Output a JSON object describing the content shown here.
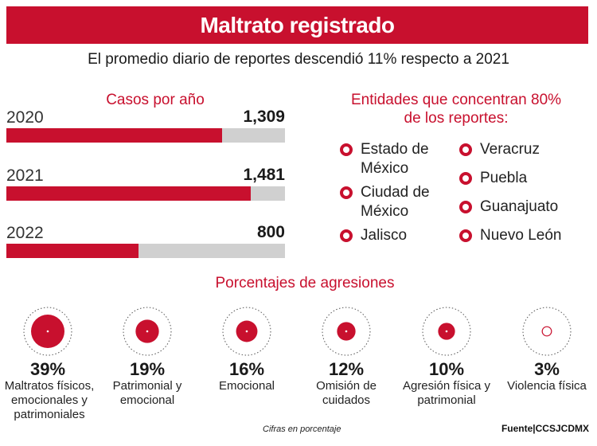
{
  "header": {
    "title": "Maltrato registrado"
  },
  "subtitle": "El promedio diario de reportes descendió 11% respecto a 2021",
  "chart_data": [
    {
      "type": "bar",
      "title": "Casos por año",
      "categories": [
        "2020",
        "2021",
        "2022"
      ],
      "values": [
        1309,
        1481,
        800
      ],
      "value_labels": [
        "1,309",
        "1,481",
        "800"
      ],
      "xlim": [
        0,
        1690
      ],
      "orientation": "horizontal"
    },
    {
      "type": "bar",
      "title": "Porcentajes de agresiones",
      "categories": [
        "Maltratos físicos, emocionales y patrimoniales",
        "Patrimonial y emocional",
        "Emocional",
        "Omisión de cuidados",
        "Agresión física y patrimonial",
        "Violencia física"
      ],
      "values": [
        39,
        19,
        16,
        12,
        10,
        3
      ],
      "value_labels": [
        "39%",
        "19%",
        "16%",
        "12%",
        "10%",
        "3%"
      ],
      "unit": "%"
    }
  ],
  "entities": {
    "title": "Entidades que concentran 80% de los reportes:",
    "left": [
      "Estado de México",
      "Ciudad de México",
      "Jalisco"
    ],
    "right": [
      "Veracruz",
      "Puebla",
      "Guanajuato",
      "Nuevo León"
    ]
  },
  "footer": {
    "note": "Cifras en porcentaje",
    "source": "Fuente|CCSJCDMX"
  },
  "colors": {
    "accent": "#c8102e",
    "track": "#d0d0d0"
  }
}
